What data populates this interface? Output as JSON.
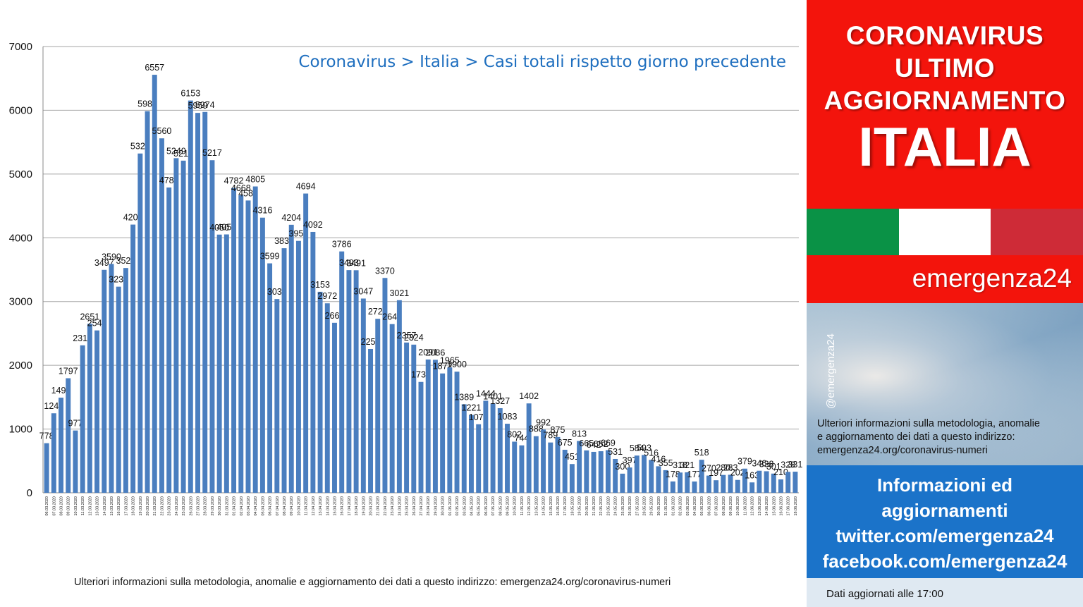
{
  "chart_data": {
    "type": "bar",
    "title": "Coronavirus > Italia > Casi totali rispetto giorno precedente",
    "ylim": [
      0,
      7000
    ],
    "y_ticks": [
      0,
      1000,
      2000,
      3000,
      4000,
      5000,
      6000,
      7000
    ],
    "grid": true,
    "bar_color": "#4a7ebf",
    "categories": [
      "06.03.2020",
      "07.03.2020",
      "08.03.2020",
      "09.03.2020",
      "10.03.2020",
      "11.03.2020",
      "12.03.2020",
      "13.03.2020",
      "14.03.2020",
      "15.03.2020",
      "16.03.2020",
      "17.03.2020",
      "18.03.2020",
      "19.03.2020",
      "20.03.2020",
      "21.03.2020",
      "22.03.2020",
      "23.03.2020",
      "24.03.2020",
      "25.03.2020",
      "26.03.2020",
      "27.03.2020",
      "28.03.2020",
      "29.03.2020",
      "30.03.2020",
      "31.03.2020",
      "01.04.2020",
      "02.04.2020",
      "03.04.2020",
      "04.04.2020",
      "05.04.2020",
      "06.04.2020",
      "07.04.2020",
      "08.04.2020",
      "09.04.2020",
      "10.04.2020",
      "11.04.2020",
      "12.04.2020",
      "13.04.2020",
      "14.04.2020",
      "15.04.2020",
      "16.04.2020",
      "17.04.2020",
      "18.04.2020",
      "19.04.2020",
      "20.04.2020",
      "21.04.2020",
      "22.04.2020",
      "23.04.2020",
      "24.04.2020",
      "25.04.2020",
      "26.04.2020",
      "27.04.2020",
      "28.04.2020",
      "29.04.2020",
      "30.04.2020",
      "01.05.2020",
      "02.05.2020",
      "03.05.2020",
      "04.05.2020",
      "05.05.2020",
      "06.05.2020",
      "07.05.2020",
      "08.05.2020",
      "09.05.2020",
      "10.05.2020",
      "11.05.2020",
      "12.05.2020",
      "13.05.2020",
      "14.05.2020",
      "15.05.2020",
      "16.05.2020",
      "17.05.2020",
      "18.05.2020",
      "19.05.2020",
      "20.05.2020",
      "21.05.2020",
      "22.05.2020",
      "23.05.2020",
      "24.05.2020",
      "25.05.2020",
      "26.05.2020",
      "27.05.2020",
      "28.05.2020",
      "29.05.2020",
      "30.05.2020",
      "31.05.2020",
      "01.06.2020",
      "02.06.2020",
      "03.06.2020",
      "04.06.2020",
      "05.06.2020",
      "06.06.2020",
      "07.06.2020",
      "08.06.2020",
      "09.06.2020",
      "10.06.2020",
      "11.06.2020",
      "12.06.2020",
      "13.06.2020",
      "14.06.2020",
      "15.06.2020",
      "16.06.2020",
      "17.06.2020",
      "18.06.2020"
    ],
    "values": [
      778,
      1247,
      1492,
      1797,
      977,
      2313,
      2651,
      2547,
      3497,
      3590,
      3233,
      3526,
      4207,
      5322,
      5986,
      6557,
      5560,
      4789,
      5249,
      5210,
      6153,
      5959,
      5974,
      5217,
      4050,
      4053,
      4782,
      4668,
      4585,
      4805,
      4316,
      3599,
      3039,
      3836,
      4204,
      3951,
      4694,
      4092,
      3153,
      2972,
      2667,
      3786,
      3493,
      3491,
      3047,
      2256,
      2729,
      3370,
      2646,
      3021,
      2357,
      2324,
      1739,
      2091,
      2086,
      1872,
      1965,
      1900,
      1389,
      1221,
      1075,
      1444,
      1401,
      1327,
      1083,
      802,
      744,
      1402,
      888,
      992,
      789,
      875,
      675,
      451,
      813,
      665,
      642,
      652,
      669,
      531,
      300,
      397,
      584,
      593,
      516,
      416,
      355,
      178,
      318,
      321,
      177,
      518,
      270,
      197,
      280,
      283,
      202,
      379,
      163,
      346,
      338,
      301,
      210,
      328,
      331
    ]
  },
  "footnote": "Ulteriori informazioni sulla metodologia, anomalie e aggiornamento dei dati a questo indirizzo: emergenza24.org/coronavirus-numeri",
  "sidebar": {
    "headline_lines": [
      "CORONAVIRUS",
      "ULTIMO",
      "AGGIORNAMENTO"
    ],
    "country": "ITALIA",
    "flag_colors": [
      "#0a9246",
      "#ffffff",
      "#ce2b37"
    ],
    "brand": "emergenza24",
    "handle": "@emergenza24",
    "methodology_lines": [
      "Ulteriori informazioni sulla metodologia, anomalie",
      "e aggiornamento dei dati a questo indirizzo:",
      "emergenza24.org/coronavirus-numeri"
    ],
    "info_lines": [
      "Informazioni ed",
      "aggiornamenti",
      "twitter.com/emergenza24",
      "facebook.com/emergenza24"
    ],
    "updated": "Dati aggiornati alle 17:00"
  }
}
